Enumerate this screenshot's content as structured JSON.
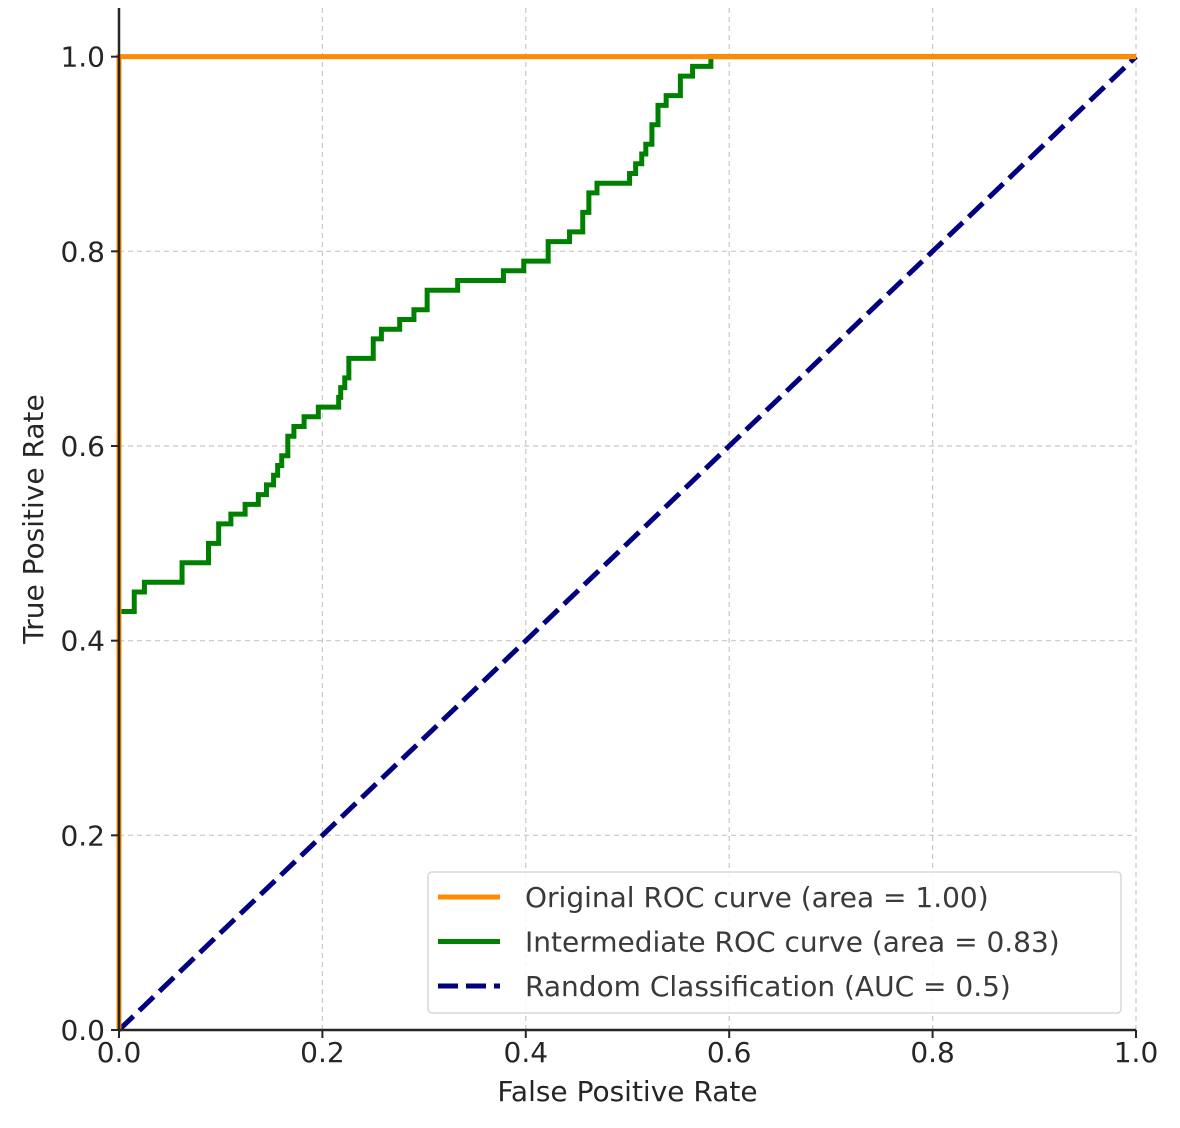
{
  "chart_data": {
    "type": "line",
    "title": "",
    "xlabel": "False Positive Rate",
    "ylabel": "True Positive Rate",
    "xlim": [
      0.0,
      1.0
    ],
    "ylim": [
      0.0,
      1.05
    ],
    "xticks": [
      "0.0",
      "0.2",
      "0.4",
      "0.6",
      "0.8",
      "1.0"
    ],
    "yticks": [
      "0.0",
      "0.2",
      "0.4",
      "0.6",
      "0.8",
      "1.0"
    ],
    "grid": true,
    "legend_position": "lower-right",
    "series": [
      {
        "name": "Original ROC curve (area = 1.00)",
        "color": "#ff8c00",
        "style": "solid",
        "x": [
          0.0,
          0.0,
          0.59,
          1.0
        ],
        "y": [
          0.0,
          1.0,
          1.0,
          1.0
        ]
      },
      {
        "name": "Intermediate ROC curve (area = 0.83)",
        "color": "#008000",
        "style": "solid",
        "x": [
          0.0,
          0.0,
          0.015,
          0.015,
          0.025,
          0.025,
          0.062,
          0.062,
          0.088,
          0.088,
          0.098,
          0.098,
          0.11,
          0.11,
          0.124,
          0.124,
          0.137,
          0.137,
          0.145,
          0.145,
          0.152,
          0.152,
          0.156,
          0.156,
          0.16,
          0.16,
          0.166,
          0.166,
          0.172,
          0.172,
          0.182,
          0.182,
          0.196,
          0.196,
          0.216,
          0.216,
          0.218,
          0.218,
          0.222,
          0.222,
          0.226,
          0.226,
          0.25,
          0.25,
          0.258,
          0.258,
          0.276,
          0.276,
          0.29,
          0.29,
          0.303,
          0.303,
          0.333,
          0.333,
          0.378,
          0.378,
          0.398,
          0.398,
          0.422,
          0.422,
          0.443,
          0.443,
          0.456,
          0.456,
          0.462,
          0.462,
          0.47,
          0.47,
          0.502,
          0.502,
          0.508,
          0.508,
          0.514,
          0.514,
          0.518,
          0.518,
          0.524,
          0.524,
          0.53,
          0.53,
          0.538,
          0.538,
          0.552,
          0.552,
          0.564,
          0.564,
          0.582,
          0.582,
          0.59,
          1.0
        ],
        "y": [
          0.0,
          0.43,
          0.43,
          0.45,
          0.45,
          0.46,
          0.46,
          0.48,
          0.48,
          0.5,
          0.5,
          0.52,
          0.52,
          0.53,
          0.53,
          0.54,
          0.54,
          0.55,
          0.55,
          0.56,
          0.56,
          0.57,
          0.57,
          0.58,
          0.58,
          0.59,
          0.59,
          0.61,
          0.61,
          0.62,
          0.62,
          0.63,
          0.63,
          0.64,
          0.64,
          0.65,
          0.65,
          0.66,
          0.66,
          0.67,
          0.67,
          0.69,
          0.69,
          0.71,
          0.71,
          0.72,
          0.72,
          0.73,
          0.73,
          0.74,
          0.74,
          0.76,
          0.76,
          0.77,
          0.77,
          0.78,
          0.78,
          0.79,
          0.79,
          0.81,
          0.81,
          0.82,
          0.82,
          0.84,
          0.84,
          0.86,
          0.86,
          0.87,
          0.87,
          0.88,
          0.88,
          0.89,
          0.89,
          0.9,
          0.9,
          0.91,
          0.91,
          0.93,
          0.93,
          0.95,
          0.95,
          0.96,
          0.96,
          0.98,
          0.98,
          0.99,
          0.99,
          1.0,
          1.0,
          1.0
        ]
      },
      {
        "name": "Random Classification (AUC = 0.5)",
        "color": "#000080",
        "style": "dashed",
        "x": [
          0.0,
          1.0
        ],
        "y": [
          0.0,
          1.0
        ]
      }
    ]
  }
}
